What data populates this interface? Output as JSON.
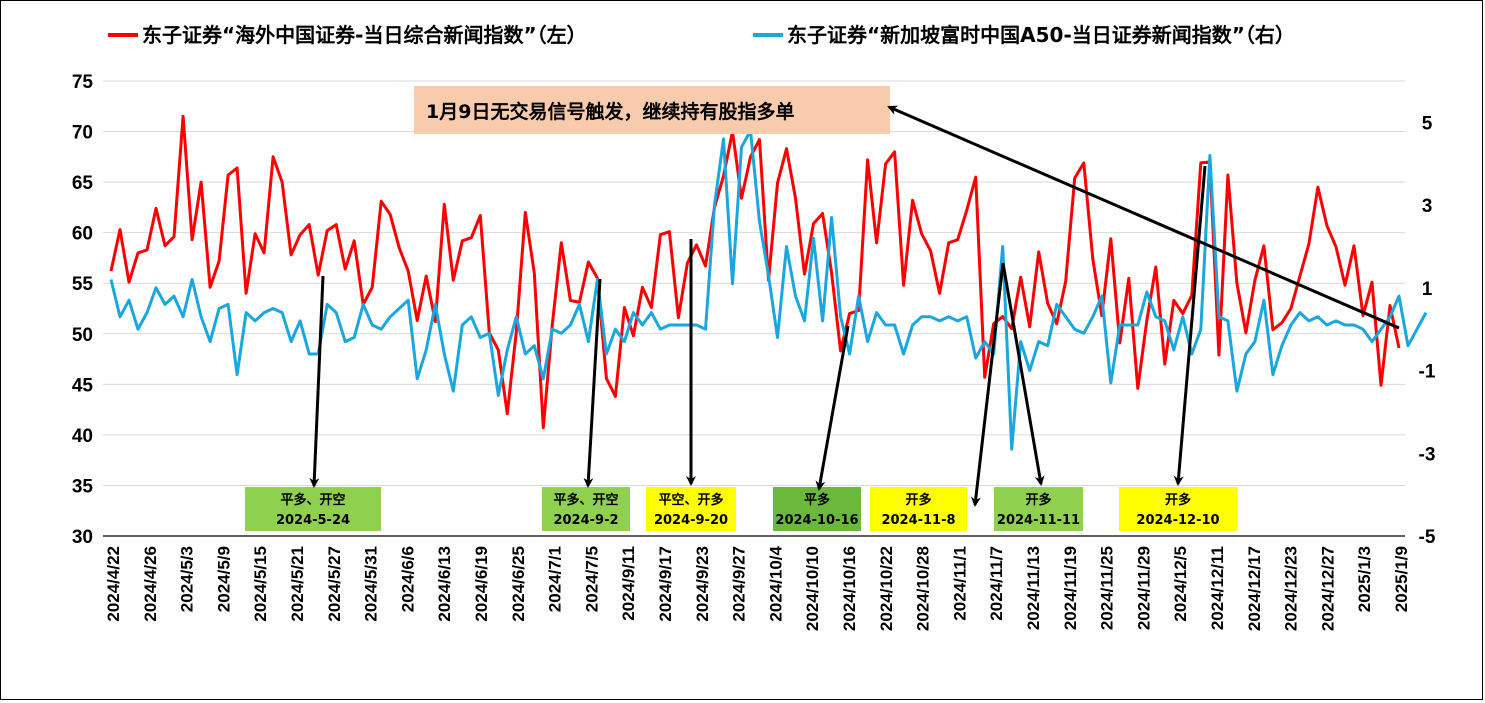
{
  "chart_data": {
    "type": "line",
    "title": "",
    "colors": {
      "left": "#ff0000",
      "right": "#1aa7e0",
      "grid": "#d9d9d9",
      "green": "#8fd14f",
      "green_dark": "#6ab93b",
      "yellow": "#ffff00",
      "note_bg": "#f8cbad"
    },
    "legend": {
      "left": "东子证券“海外中国证券-当日综合新闻指数”（左）",
      "right": "东子证券“新加坡富时中国A50-当日证券新闻指数”（右）"
    },
    "y_left": {
      "min": 30,
      "max": 75,
      "ticks": [
        30,
        35,
        40,
        45,
        50,
        55,
        60,
        65,
        70,
        75
      ]
    },
    "y_right": {
      "min": -5,
      "max": 6,
      "ticks": [
        -5,
        -3,
        -1,
        1,
        3,
        5
      ]
    },
    "x_tick_labels": [
      "2024/4/22",
      "2024/4/26",
      "2024/5/3",
      "2024/5/9",
      "2024/5/15",
      "2024/5/21",
      "2024/5/27",
      "2024/5/31",
      "2024/6/6",
      "2024/6/13",
      "2024/6/19",
      "2024/6/25",
      "2024/7/1",
      "2024/7/5",
      "2024/9/11",
      "2024/9/17",
      "2024/9/23",
      "2024/9/27",
      "2024/10/4",
      "2024/10/10",
      "2024/10/16",
      "2024/10/22",
      "2024/10/28",
      "2024/11/1",
      "2024/11/7",
      "2024/11/13",
      "2024/11/19",
      "2024/11/25",
      "2024/11/29",
      "2024/12/5",
      "2024/12/11",
      "2024/12/17",
      "2024/12/23",
      "2024/12/27",
      "2025/1/3",
      "2025/1/9"
    ],
    "series": [
      {
        "name": "东子证券“海外中国证券-当日综合新闻指数”（左）",
        "axis": "left",
        "values": [
          56.2,
          60.3,
          55.1,
          58.0,
          58.3,
          62.4,
          58.7,
          59.6,
          71.5,
          59.3,
          65.0,
          54.6,
          57.2,
          65.7,
          66.4,
          54.0,
          59.9,
          58.0,
          67.5,
          65.0,
          57.8,
          59.8,
          60.8,
          55.8,
          60.2,
          60.8,
          56.4,
          59.2,
          52.9,
          54.6,
          63.1,
          61.8,
          58.5,
          56.2,
          51.3,
          55.7,
          51.2,
          62.8,
          55.3,
          59.2,
          59.5,
          61.7,
          50.1,
          48.4,
          42.1,
          50.2,
          62.0,
          56.0,
          40.7,
          50.9,
          59.0,
          53.3,
          53.1,
          57.1,
          55.5,
          45.6,
          43.8,
          52.6,
          49.8,
          54.6,
          52.6,
          59.8,
          60.1,
          51.6,
          57.0,
          58.8,
          56.7,
          62.5,
          65.6,
          70.0,
          63.4,
          67.5,
          69.2,
          55.3,
          64.9,
          68.3,
          63.4,
          55.9,
          60.9,
          61.9,
          56.0,
          48.3,
          52.0,
          52.3,
          67.2,
          59.0,
          66.8,
          68.0,
          54.8,
          63.2,
          59.9,
          58.2,
          54.0,
          59.0,
          59.3,
          62.2,
          65.5,
          45.7,
          51.0,
          51.7,
          50.5,
          55.6,
          50.7,
          58.1,
          53.0,
          51.0,
          55.2,
          65.4,
          66.9,
          57.4,
          51.8,
          59.4,
          49.1,
          55.5,
          44.6,
          51.3,
          56.6,
          47.0,
          53.3,
          52.0,
          53.8,
          66.9,
          67.0,
          47.9,
          65.7,
          55.0,
          50.1,
          55.3,
          58.7,
          50.4,
          51.1,
          52.5,
          55.7,
          58.9,
          64.5,
          60.7,
          58.6,
          54.8,
          58.7,
          51.8,
          55.1,
          44.9,
          52.8,
          48.6
        ]
      },
      {
        "name": "东子证券“新加坡富时中国A50-当日证券新闻指数”（右）",
        "axis": "right",
        "values": [
          1.2,
          0.3,
          0.7,
          0.0,
          0.4,
          1.0,
          0.6,
          0.8,
          0.3,
          1.2,
          0.3,
          -0.3,
          0.5,
          0.6,
          -1.1,
          0.4,
          0.2,
          0.4,
          0.5,
          0.4,
          -0.3,
          0.2,
          -0.6,
          -0.6,
          0.6,
          0.4,
          -0.3,
          -0.2,
          0.6,
          0.1,
          0.0,
          0.3,
          0.5,
          0.7,
          -1.2,
          -0.5,
          0.6,
          -0.6,
          -1.5,
          0.1,
          0.3,
          -0.2,
          -0.1,
          -1.6,
          -0.5,
          0.3,
          -0.6,
          -0.4,
          -1.2,
          0.0,
          -0.1,
          0.1,
          0.6,
          -0.3,
          1.2,
          -0.6,
          0.0,
          -0.3,
          0.4,
          0.1,
          0.4,
          0.0,
          0.1,
          0.1,
          0.1,
          0.1,
          0.0,
          3.0,
          4.6,
          1.1,
          4.4,
          4.8,
          2.6,
          1.3,
          -0.2,
          2.0,
          0.8,
          0.2,
          2.2,
          0.2,
          2.7,
          0.3,
          -0.6,
          0.8,
          -0.3,
          0.4,
          0.1,
          0.1,
          -0.6,
          0.1,
          0.3,
          0.3,
          0.2,
          0.3,
          0.2,
          0.3,
          -0.7,
          -0.3,
          -0.6,
          2.0,
          -2.9,
          -0.3,
          -1.0,
          -0.3,
          -0.4,
          0.6,
          0.3,
          0.0,
          -0.1,
          0.3,
          0.8,
          -1.3,
          0.1,
          0.1,
          0.1,
          0.9,
          0.3,
          0.2,
          -0.5,
          0.3,
          -0.6,
          0.0,
          4.2,
          0.3,
          0.2,
          -1.5,
          -0.6,
          -0.3,
          0.7,
          -1.1,
          -0.4,
          0.1,
          0.4,
          0.2,
          0.3,
          0.1,
          0.2,
          0.1,
          0.1,
          0.0,
          -0.3,
          0.0,
          0.3,
          0.8,
          -0.4,
          0.0,
          0.4
        ]
      }
    ],
    "annotations": [
      {
        "text": "平多、开空",
        "date": "2024-5-24",
        "style": "green"
      },
      {
        "text": "平多、开空",
        "date": "2024-9-2",
        "style": "green"
      },
      {
        "text": "平空、开多",
        "date": "2024-9-20",
        "style": "yellow"
      },
      {
        "text": "平多",
        "date": "2024-10-16",
        "style": "green_dark"
      },
      {
        "text": "开多",
        "date": "2024-11-8",
        "style": "yellow"
      },
      {
        "text": "开多",
        "date": "2024-11-11",
        "style": "green"
      },
      {
        "text": "开多",
        "date": "2024-12-10",
        "style": "yellow"
      }
    ],
    "note": "1月9日无交易信号触发，继续持有股指多单"
  }
}
